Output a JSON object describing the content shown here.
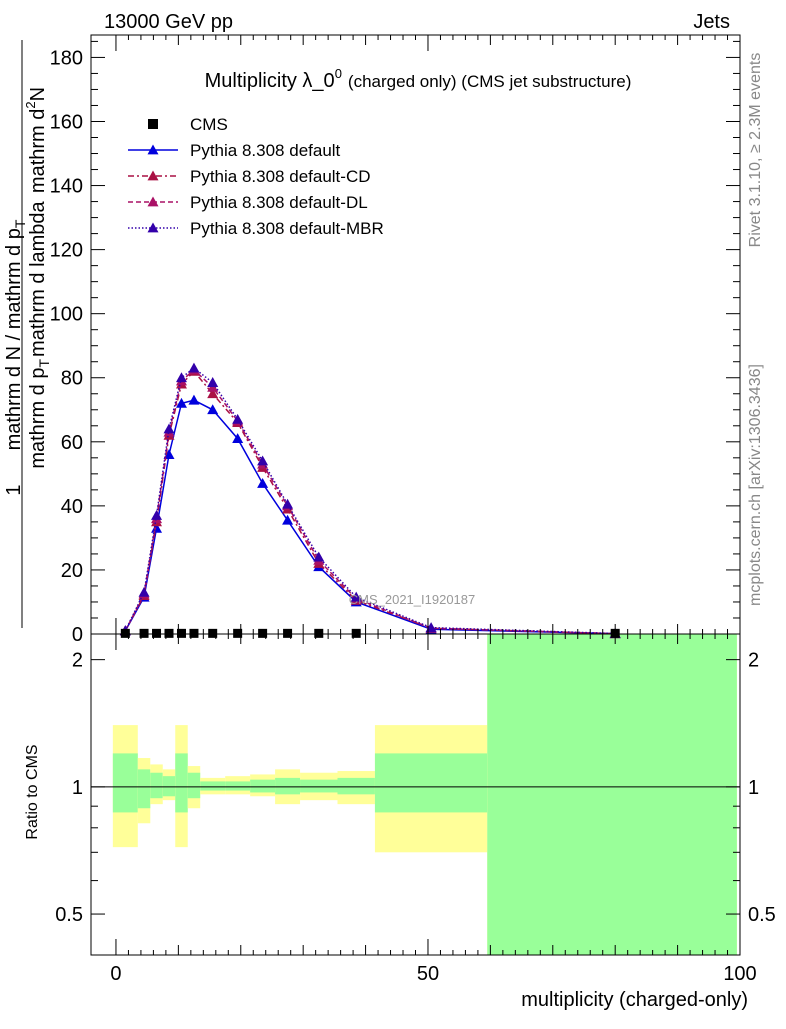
{
  "header": {
    "left": "13000 GeV pp",
    "right": "Jets"
  },
  "side_labels": {
    "rivet": "Rivet 3.1.10, ≥ 2.3M events",
    "mcplots": "mcplots.cern.ch [arXiv:1306.3436]"
  },
  "chart_data": {
    "type": "line",
    "title": "Multiplicity λ_0",
    "title_superscript": "0",
    "title_suffix": "(charged only) (CMS jet substructure)",
    "watermark": "CMS_2021_I1920187",
    "xlabel": "multiplicity (charged-only)",
    "ylabel": {
      "one": "1",
      "left_den": "mathrm d N / mathrm d p",
      "left_sub": "T",
      "right_den": "mathrm d p",
      "right_sub": "T",
      "right_tail": "mathrm d lambda",
      "num": "mathrm d",
      "num_sup": "2",
      "num_tail": "N",
      "tail": "mathrm d p"
    },
    "xlim": [
      -4,
      100
    ],
    "ylim": [
      0,
      187
    ],
    "xticks": [
      "0",
      "50",
      "100"
    ],
    "yticks": [
      "0",
      "20",
      "40",
      "60",
      "80",
      "100",
      "120",
      "140",
      "160",
      "180"
    ],
    "legend": {
      "position": "top-left",
      "entries": [
        {
          "label": "CMS",
          "color": "#000000",
          "marker": "square",
          "line": "none"
        },
        {
          "label": "Pythia 8.308 default",
          "color": "#0000dd",
          "marker": "triangle",
          "line": "solid"
        },
        {
          "label": "Pythia 8.308 default-CD",
          "color": "#aa1144",
          "marker": "triangle",
          "line": "dashdot"
        },
        {
          "label": "Pythia 8.308 default-DL",
          "color": "#aa1166",
          "marker": "triangle",
          "line": "dashed"
        },
        {
          "label": "Pythia 8.308 default-MBR",
          "color": "#3300aa",
          "marker": "triangle",
          "line": "dotted"
        }
      ]
    },
    "data": {
      "name": "CMS",
      "x": [
        1.5,
        4.5,
        6.5,
        8.5,
        10.5,
        12.5,
        15.5,
        19.5,
        23.5,
        27.5,
        32.5,
        38.5,
        80
      ],
      "y": [
        0.2,
        0.2,
        0.2,
        0.2,
        0.2,
        0.2,
        0.2,
        0.2,
        0.2,
        0.2,
        0.2,
        0.2,
        0.2
      ]
    },
    "series": [
      {
        "name": "Pythia 8.308 default",
        "x": [
          1.5,
          4.5,
          6.5,
          8.5,
          10.5,
          12.5,
          15.5,
          19.5,
          23.5,
          27.5,
          32.5,
          38.5,
          50.5,
          80
        ],
        "y": [
          1,
          11.5,
          33,
          56,
          72,
          73,
          70,
          61,
          47,
          35.5,
          21,
          10,
          1.5,
          0.1
        ]
      },
      {
        "name": "Pythia 8.308 default-CD",
        "x": [
          1.5,
          4.5,
          6.5,
          8.5,
          10.5,
          12.5,
          15.5,
          19.5,
          23.5,
          27.5,
          32.5,
          38.5,
          50.5,
          80
        ],
        "y": [
          1,
          12,
          35,
          62,
          78,
          82,
          75,
          66,
          52,
          39,
          22,
          10.5,
          1.8,
          0.1
        ]
      },
      {
        "name": "Pythia 8.308 default-DL",
        "x": [
          1.5,
          4.5,
          6.5,
          8.5,
          10.5,
          12.5,
          15.5,
          19.5,
          23.5,
          27.5,
          32.5,
          38.5,
          50.5,
          80
        ],
        "y": [
          1,
          12.5,
          36,
          63,
          79,
          82.5,
          77,
          66.5,
          53,
          40,
          23,
          11,
          1.8,
          0.1
        ]
      },
      {
        "name": "Pythia 8.308 default-MBR",
        "x": [
          1.5,
          4.5,
          6.5,
          8.5,
          10.5,
          12.5,
          15.5,
          19.5,
          23.5,
          27.5,
          32.5,
          38.5,
          50.5,
          80
        ],
        "y": [
          1,
          13,
          37,
          64,
          80,
          83,
          78.5,
          67,
          54,
          40.5,
          24,
          11.5,
          2,
          0.15
        ]
      }
    ],
    "ratio": {
      "ylabel": "Ratio to CMS",
      "yscale": "log",
      "ylim": [
        0.4,
        2.3
      ],
      "yticks": [
        "0.5",
        "1",
        "2"
      ],
      "bands": [
        {
          "x0": -0.5,
          "x1": 3.5,
          "stat": [
            0.87,
            1.2
          ],
          "tot": [
            0.72,
            1.4
          ]
        },
        {
          "x0": 3.5,
          "x1": 5.5,
          "stat": [
            0.89,
            1.1
          ],
          "tot": [
            0.82,
            1.17
          ]
        },
        {
          "x0": 5.5,
          "x1": 7.5,
          "stat": [
            0.94,
            1.08
          ],
          "tot": [
            0.91,
            1.13
          ]
        },
        {
          "x0": 7.5,
          "x1": 9.5,
          "stat": [
            0.95,
            1.06
          ],
          "tot": [
            0.93,
            1.1
          ]
        },
        {
          "x0": 9.5,
          "x1": 11.5,
          "stat": [
            0.87,
            1.2
          ],
          "tot": [
            0.72,
            1.4
          ]
        },
        {
          "x0": 11.5,
          "x1": 13.5,
          "stat": [
            0.94,
            1.08
          ],
          "tot": [
            0.89,
            1.12
          ]
        },
        {
          "x0": 13.5,
          "x1": 17.5,
          "stat": [
            0.98,
            1.03
          ],
          "tot": [
            0.96,
            1.05
          ]
        },
        {
          "x0": 17.5,
          "x1": 21.5,
          "stat": [
            0.98,
            1.03
          ],
          "tot": [
            0.96,
            1.06
          ]
        },
        {
          "x0": 21.5,
          "x1": 25.5,
          "stat": [
            0.97,
            1.04
          ],
          "tot": [
            0.95,
            1.07
          ]
        },
        {
          "x0": 25.5,
          "x1": 29.5,
          "stat": [
            0.96,
            1.05
          ],
          "tot": [
            0.91,
            1.1
          ]
        },
        {
          "x0": 29.5,
          "x1": 35.5,
          "stat": [
            0.97,
            1.04
          ],
          "tot": [
            0.93,
            1.08
          ]
        },
        {
          "x0": 35.5,
          "x1": 41.5,
          "stat": [
            0.96,
            1.05
          ],
          "tot": [
            0.91,
            1.09
          ]
        },
        {
          "x0": 41.5,
          "x1": 59.5,
          "stat": [
            0.87,
            1.2
          ],
          "tot": [
            0.7,
            1.4
          ]
        },
        {
          "x0": 59.5,
          "x1": 99.5,
          "stat": [
            0.3,
            3.0
          ],
          "tot": [
            0.3,
            3.0
          ]
        }
      ],
      "colors": {
        "stat": "#99ff99",
        "tot": "#ffff99"
      }
    }
  }
}
